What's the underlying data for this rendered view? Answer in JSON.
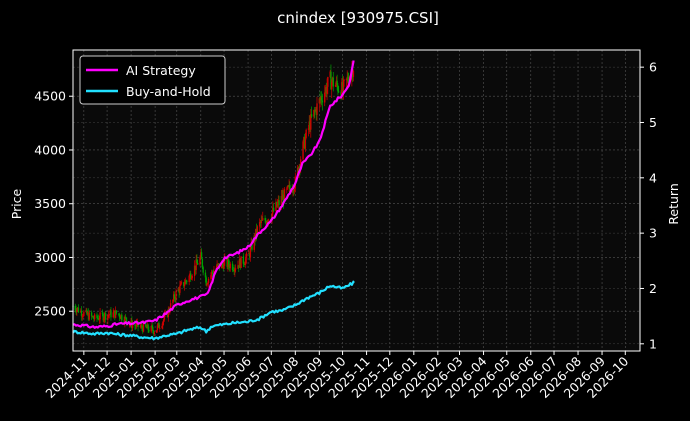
{
  "chart_data": {
    "type": "line",
    "title": "cnindex [930975.CSI]",
    "xlabel": "",
    "ylabel_left": "Price",
    "ylabel_right": "Return",
    "grid": true,
    "legend_placement": "top-left",
    "background": "#000000",
    "x_ticks": [
      "2024-11",
      "2024-12",
      "2025-01",
      "2025-02",
      "2025-03",
      "2025-04",
      "2025-05",
      "2025-06",
      "2025-07",
      "2025-08",
      "2025-09",
      "2025-10",
      "2025-11",
      "2025-12",
      "2026-01",
      "2026-02",
      "2026-03",
      "2026-04",
      "2026-05",
      "2026-06",
      "2026-07",
      "2026-08",
      "2026-09",
      "2026-10"
    ],
    "xlim": [
      "2024-10-18",
      "2026-10-20"
    ],
    "y_left": {
      "ticks": [
        2500,
        3000,
        3500,
        4000,
        4500
      ],
      "lim": [
        2130,
        4930
      ]
    },
    "y_right": {
      "ticks": [
        1,
        2,
        3,
        4,
        5,
        6
      ],
      "lim": [
        0.87,
        6.31
      ]
    },
    "candle_colors": {
      "up": "#d00000",
      "down": "#00a000"
    },
    "series": [
      {
        "name": "AI Strategy",
        "color": "#ff00ff",
        "axis": "right",
        "x": [
          "2024-10-18",
          "2024-11-01",
          "2024-11-15",
          "2024-12-01",
          "2024-12-15",
          "2025-01-01",
          "2025-01-15",
          "2025-02-01",
          "2025-02-15",
          "2025-03-01",
          "2025-03-15",
          "2025-04-01",
          "2025-04-10",
          "2025-04-20",
          "2025-05-01",
          "2025-05-15",
          "2025-06-01",
          "2025-06-15",
          "2025-07-01",
          "2025-07-15",
          "2025-08-01",
          "2025-08-10",
          "2025-08-20",
          "2025-09-01",
          "2025-09-15",
          "2025-10-01",
          "2025-10-10",
          "2025-10-15"
        ],
        "y": [
          1.35,
          1.33,
          1.3,
          1.32,
          1.36,
          1.37,
          1.38,
          1.42,
          1.55,
          1.7,
          1.78,
          1.85,
          1.9,
          2.3,
          2.55,
          2.62,
          2.75,
          3.0,
          3.22,
          3.5,
          3.9,
          4.25,
          4.4,
          4.65,
          5.3,
          5.5,
          5.7,
          6.12
        ]
      },
      {
        "name": "Buy-and-Hold",
        "color": "#22e0ff",
        "axis": "right",
        "x": [
          "2024-10-18",
          "2024-11-01",
          "2024-11-15",
          "2024-12-01",
          "2024-12-15",
          "2025-01-01",
          "2025-01-15",
          "2025-02-01",
          "2025-02-15",
          "2025-03-01",
          "2025-03-15",
          "2025-04-01",
          "2025-04-08",
          "2025-04-15",
          "2025-05-01",
          "2025-05-15",
          "2025-06-01",
          "2025-06-15",
          "2025-07-01",
          "2025-07-15",
          "2025-08-01",
          "2025-08-15",
          "2025-09-01",
          "2025-09-15",
          "2025-10-01",
          "2025-10-15"
        ],
        "y": [
          1.22,
          1.2,
          1.18,
          1.2,
          1.17,
          1.15,
          1.12,
          1.1,
          1.15,
          1.18,
          1.25,
          1.3,
          1.22,
          1.32,
          1.35,
          1.38,
          1.4,
          1.45,
          1.58,
          1.6,
          1.7,
          1.82,
          1.92,
          2.05,
          2.0,
          2.1
        ]
      }
    ],
    "price": {
      "axis": "left",
      "x": [
        "2024-10-18",
        "2024-11-01",
        "2024-11-15",
        "2024-12-01",
        "2024-12-15",
        "2025-01-01",
        "2025-01-15",
        "2025-02-01",
        "2025-02-15",
        "2025-03-01",
        "2025-03-15",
        "2025-04-01",
        "2025-04-08",
        "2025-04-20",
        "2025-05-01",
        "2025-05-15",
        "2025-06-01",
        "2025-06-15",
        "2025-07-01",
        "2025-07-15",
        "2025-08-01",
        "2025-08-10",
        "2025-08-20",
        "2025-09-01",
        "2025-09-15",
        "2025-10-01",
        "2025-10-10",
        "2025-10-15"
      ],
      "close": [
        2550,
        2480,
        2430,
        2470,
        2480,
        2380,
        2350,
        2320,
        2450,
        2680,
        2800,
        3000,
        2780,
        2900,
        2950,
        2920,
        3000,
        3300,
        3400,
        3550,
        3700,
        4000,
        4250,
        4450,
        4650,
        4550,
        4700,
        4780
      ]
    }
  }
}
